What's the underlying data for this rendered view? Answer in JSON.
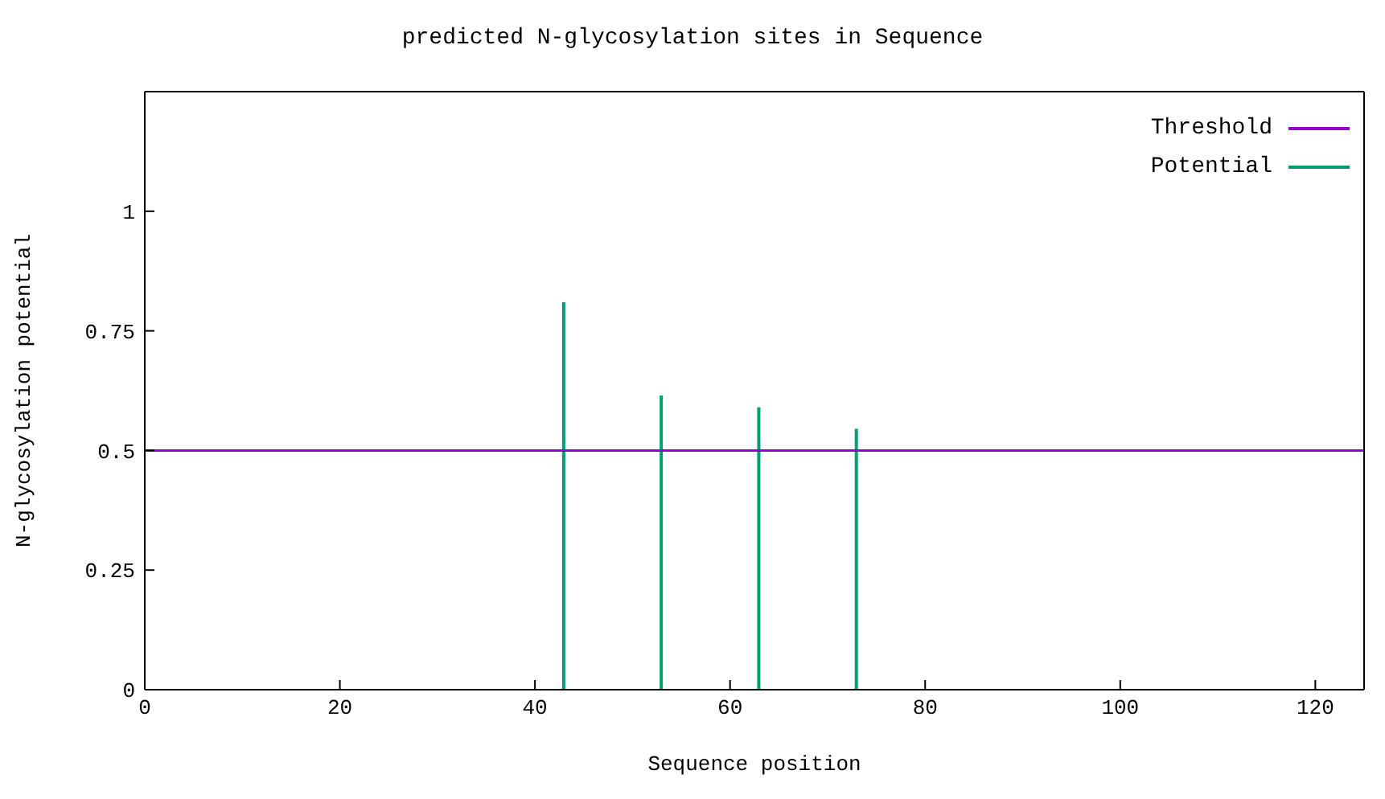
{
  "chart_data": {
    "type": "bar",
    "title": "predicted N-glycosylation sites in Sequence",
    "xlabel": "Sequence position",
    "ylabel": "N-glycosylation potential",
    "xlim": [
      0,
      125
    ],
    "xticks": [
      0,
      20,
      40,
      60,
      80,
      100,
      120
    ],
    "ylim": [
      0,
      1.25
    ],
    "yticks": [
      0,
      0.25,
      0.5,
      0.75,
      1
    ],
    "grid": false,
    "legend": "top right",
    "series": [
      {
        "name": "Threshold",
        "type": "line",
        "color": "#9400d3",
        "x": [
          0,
          125
        ],
        "values": [
          0.5,
          0.5
        ]
      },
      {
        "name": "Potential",
        "color": "#009e73",
        "x": [
          43,
          53,
          63,
          73
        ],
        "values": [
          0.81,
          0.615,
          0.59,
          0.545
        ]
      }
    ]
  }
}
